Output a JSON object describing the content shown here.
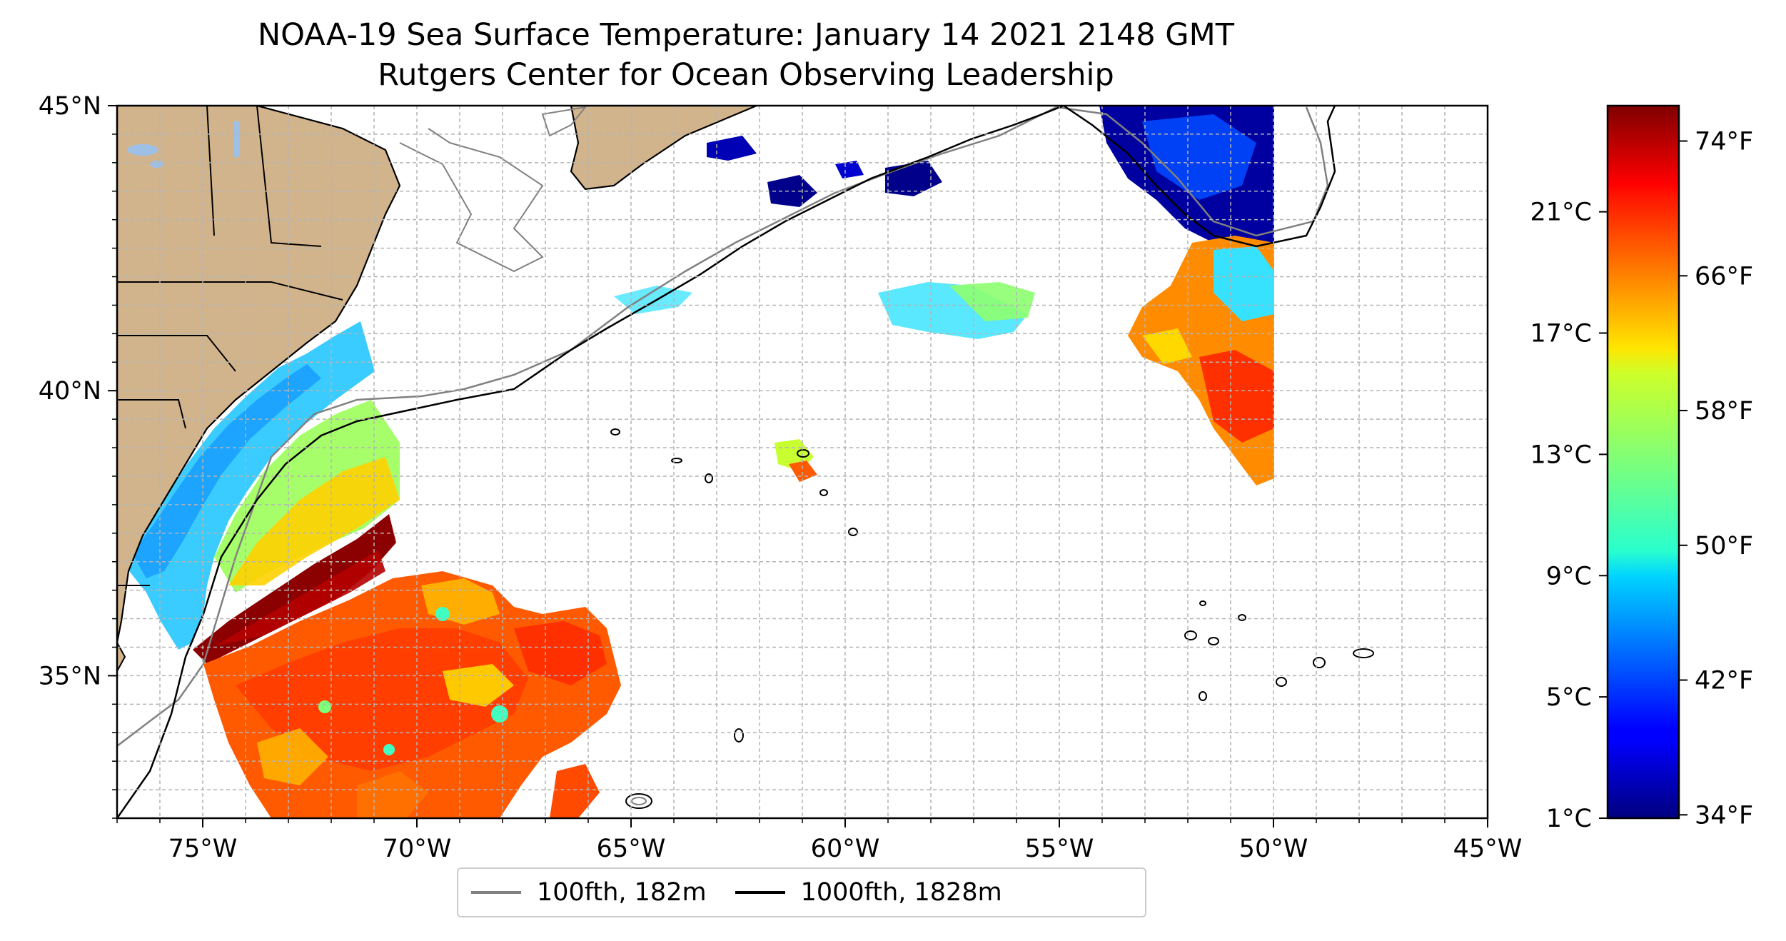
{
  "title": {
    "line1": "NOAA-19 Sea Surface Temperature: January 14 2021 2148 GMT",
    "line2": "Rutgers Center for Ocean Observing Leadership"
  },
  "map": {
    "extent": {
      "lon_min": -77,
      "lon_max": -45,
      "lat_min": 32.5,
      "lat_max": 45
    },
    "lat_ticks": [
      {
        "value": 45,
        "label": "45°N"
      },
      {
        "value": 40,
        "label": "40°N"
      },
      {
        "value": 35,
        "label": "35°N"
      }
    ],
    "lon_ticks": [
      {
        "value": -75,
        "label": "75°W"
      },
      {
        "value": -70,
        "label": "70°W"
      },
      {
        "value": -65,
        "label": "65°W"
      },
      {
        "value": -60,
        "label": "60°W"
      },
      {
        "value": -55,
        "label": "55°W"
      },
      {
        "value": -50,
        "label": "50°W"
      },
      {
        "value": -45,
        "label": "45°W"
      }
    ],
    "grid": true,
    "colors": {
      "land": "#d2b48c",
      "lakes": "#9ec0e6",
      "isobath_100fth": "#808080",
      "isobath_1000fth": "#000000"
    }
  },
  "colorbar": {
    "colormap": "jet",
    "range_celsius": [
      1,
      24.5
    ],
    "celsius_ticks": [
      {
        "value": 1,
        "label": "1°C"
      },
      {
        "value": 5,
        "label": "5°C"
      },
      {
        "value": 9,
        "label": "9°C"
      },
      {
        "value": 13,
        "label": "13°C"
      },
      {
        "value": 17,
        "label": "17°C"
      },
      {
        "value": 21,
        "label": "21°C"
      }
    ],
    "fahrenheit_ticks": [
      {
        "value": 34,
        "label": "34°F"
      },
      {
        "value": 42,
        "label": "42°F"
      },
      {
        "value": 50,
        "label": "50°F"
      },
      {
        "value": 58,
        "label": "58°F"
      },
      {
        "value": 66,
        "label": "66°F"
      },
      {
        "value": 74,
        "label": "74°F"
      }
    ]
  },
  "legend": {
    "items": [
      {
        "label": "100fth, 182m",
        "color": "#808080"
      },
      {
        "label": "1000fth, 1828m",
        "color": "#000000"
      }
    ]
  }
}
